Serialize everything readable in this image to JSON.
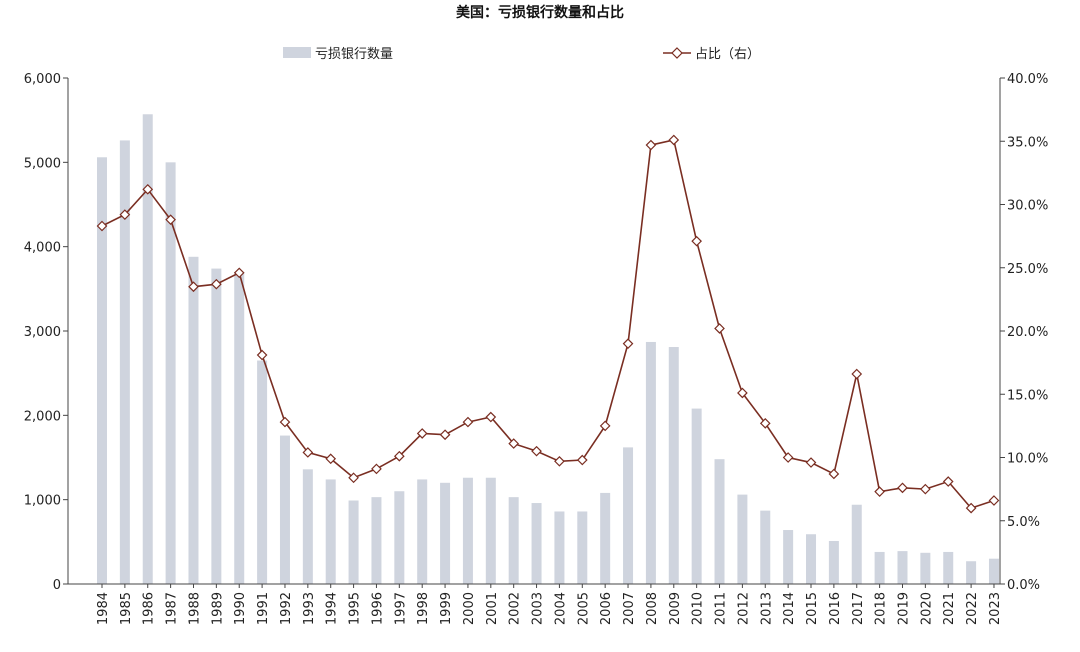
{
  "colors": {
    "bar": "#cfd4de",
    "line": "#7a2e22",
    "marker_fill": "#ffffff",
    "axis": "#444444"
  },
  "chart_data": {
    "type": "bar+line",
    "title": "美国：亏损银行数量和占比",
    "legend_position": "top",
    "grid": false,
    "categories": [
      "1984",
      "1985",
      "1986",
      "1987",
      "1988",
      "1989",
      "1990",
      "1991",
      "1992",
      "1993",
      "1994",
      "1995",
      "1996",
      "1997",
      "1998",
      "1999",
      "2000",
      "2001",
      "2002",
      "2003",
      "2004",
      "2005",
      "2006",
      "2007",
      "2008",
      "2009",
      "2010",
      "2011",
      "2012",
      "2013",
      "2014",
      "2015",
      "2016",
      "2017",
      "2018",
      "2019",
      "2020",
      "2021",
      "2022",
      "2023"
    ],
    "y_left": {
      "lim": [
        0,
        6000
      ],
      "ticks": [
        0,
        1000,
        2000,
        3000,
        4000,
        5000,
        6000
      ],
      "tick_labels": [
        "0",
        "1,000",
        "2,000",
        "3,000",
        "4,000",
        "5,000",
        "6,000"
      ]
    },
    "y_right": {
      "lim": [
        0,
        40
      ],
      "ticks": [
        0,
        5,
        10,
        15,
        20,
        25,
        30,
        35,
        40
      ],
      "tick_labels": [
        "0.0%",
        "5.0%",
        "10.0%",
        "15.0%",
        "20.0%",
        "25.0%",
        "30.0%",
        "35.0%",
        "40.0%"
      ]
    },
    "series": [
      {
        "name": "亏损银行数量",
        "type": "bar",
        "axis": "left",
        "values": [
          5060,
          5260,
          5570,
          5000,
          3880,
          3740,
          3700,
          2650,
          1760,
          1360,
          1240,
          990,
          1030,
          1100,
          1240,
          1200,
          1260,
          1260,
          1030,
          960,
          860,
          860,
          1080,
          1620,
          2870,
          2810,
          2080,
          1480,
          1060,
          870,
          640,
          590,
          510,
          940,
          380,
          390,
          370,
          380,
          270,
          300
        ]
      },
      {
        "name": "占比（右）",
        "type": "line",
        "axis": "right",
        "values": [
          28.3,
          29.2,
          31.2,
          28.8,
          23.5,
          23.7,
          24.6,
          18.1,
          12.8,
          10.4,
          9.9,
          8.4,
          9.1,
          10.1,
          11.9,
          11.8,
          12.8,
          13.2,
          11.1,
          10.5,
          9.7,
          9.8,
          12.5,
          19.0,
          34.7,
          35.1,
          27.1,
          20.2,
          15.1,
          12.7,
          10.0,
          9.6,
          8.7,
          16.6,
          7.3,
          7.6,
          7.5,
          8.1,
          6.0,
          6.6
        ]
      }
    ]
  }
}
